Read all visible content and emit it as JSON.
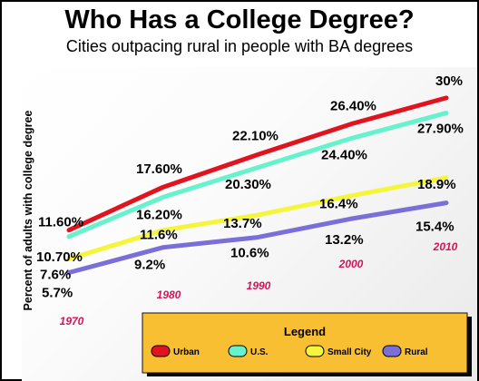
{
  "chart_data": {
    "type": "line",
    "title": "Who Has a College Degree?",
    "subtitle": "Cities outpacing rural in people with BA degrees",
    "ylabel": "Percent of adults with college degree",
    "xlabel": "",
    "x": [
      1970,
      1980,
      1990,
      2000,
      2010
    ],
    "year_labels": [
      "1970",
      "1980",
      "1990",
      "2000",
      "2010"
    ],
    "ylim": [
      5,
      31
    ],
    "grid": false,
    "legend": {
      "title": "Legend",
      "position": "bottom-right"
    },
    "series": [
      {
        "name": "Urban",
        "color": "#e0141e",
        "values": [
          11.6,
          17.6,
          22.1,
          26.4,
          30
        ],
        "labels": [
          "11.60%",
          "17.60%",
          "22.10%",
          "26.40%",
          "30%"
        ]
      },
      {
        "name": "U.S.",
        "color": "#66f2cc",
        "values": [
          10.7,
          16.2,
          20.3,
          24.4,
          27.9
        ],
        "labels": [
          "10.70%",
          "16.20%",
          "20.30%",
          "24.40%",
          "27.90%"
        ]
      },
      {
        "name": "Small City",
        "color": "#f5f53c",
        "values": [
          7.6,
          11.6,
          13.7,
          16.4,
          18.9
        ],
        "labels": [
          "7.6%",
          "11.6%",
          "13.7%",
          "16.4%",
          "18.9%"
        ]
      },
      {
        "name": "Rural",
        "color": "#7a6fd8",
        "values": [
          5.7,
          9.2,
          10.6,
          13.2,
          15.4
        ],
        "labels": [
          "5.7%",
          "9.2%",
          "10.6%",
          "13.2%",
          "15.4%"
        ]
      }
    ]
  }
}
